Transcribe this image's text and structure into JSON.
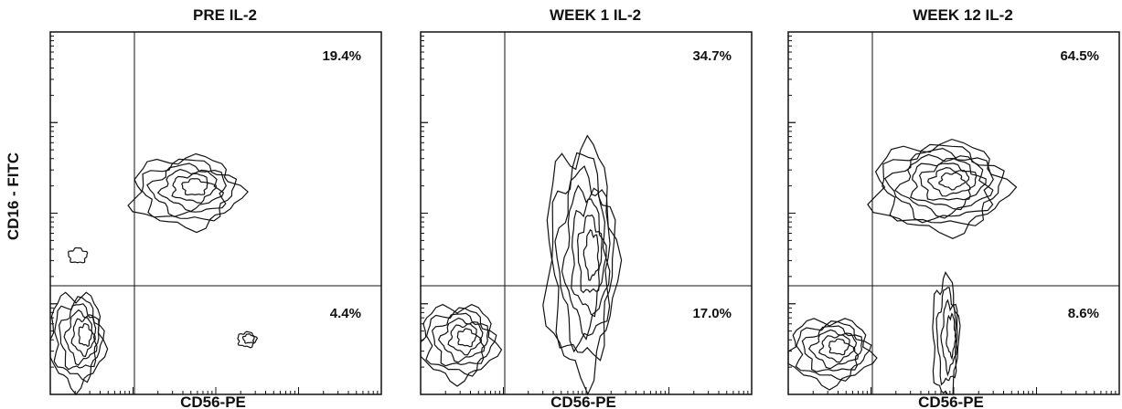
{
  "figure": {
    "y_label": "CD16 - FITC",
    "panels": [
      {
        "title": "PRE  IL-2",
        "upper_right": "19.4%",
        "lower_right": "4.4%",
        "x_label": "CD56-PE"
      },
      {
        "title": "WEEK 1  IL-2",
        "upper_right": "34.7%",
        "lower_right": "17.0%",
        "x_label": "CD56-PE"
      },
      {
        "title": "WEEK 12  IL-2",
        "upper_right": "64.5%",
        "lower_right": "8.6%",
        "x_label": "CD56-PE"
      }
    ]
  }
}
